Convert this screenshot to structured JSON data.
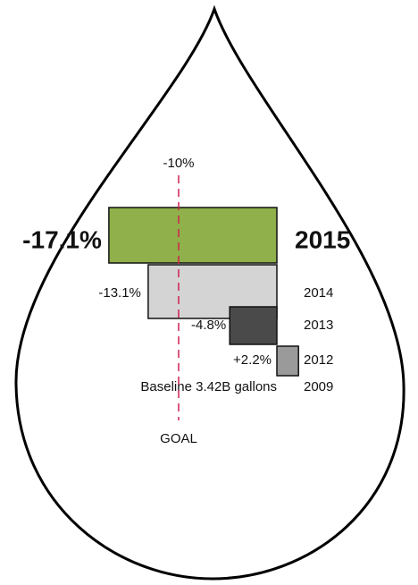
{
  "chart_data": {
    "type": "bar",
    "orientation": "horizontal",
    "categories": [
      "2015",
      "2014",
      "2013",
      "2012",
      "2009"
    ],
    "values": [
      -17.1,
      -13.1,
      -4.8,
      2.2,
      null
    ],
    "value_labels": [
      "-17.1%",
      "-13.1%",
      "-4.8%",
      "+2.2%",
      null
    ],
    "colors": [
      "#8fb04a",
      "#d4d4d4",
      "#4a4a4a",
      "#9a9a9a",
      null
    ],
    "baseline_label": "Baseline 3.42B gallons",
    "goal": {
      "value": -10,
      "label": "-10%"
    },
    "goal_label": "GOAL",
    "goal_color": "#d02050",
    "xlim": [
      -20,
      5
    ]
  }
}
